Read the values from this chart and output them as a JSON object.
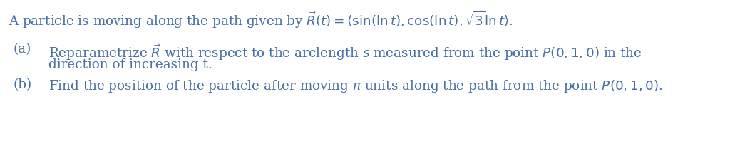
{
  "background_color": "#ffffff",
  "text_color": "#4a6fa5",
  "fig_width": 10.38,
  "fig_height": 2.02,
  "dpi": 100,
  "font_size": 13.2,
  "line1": "A particle is moving along the path given by $\\vec{R}(t) = \\langle\\sin(\\ln t), \\cos(\\ln t), \\sqrt{3}\\ln t\\rangle$.",
  "line2a_label": "(a)",
  "line2a_text": "Reparametrize $\\vec{R}$ with respect to the arclength $s$ measured from the point $P(0,1,0)$ in the",
  "line2b_text": "direction of increasing t.",
  "line3a_label": "(b)",
  "line3a_text": "Find the position of the particle after moving $\\pi$ units along the path from the point $P(0,1,0)$."
}
